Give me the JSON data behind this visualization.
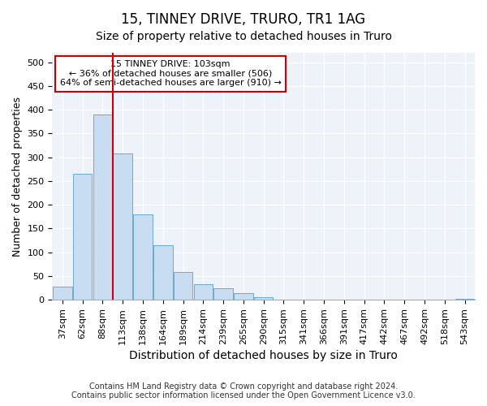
{
  "title": "15, TINNEY DRIVE, TRURO, TR1 1AG",
  "subtitle": "Size of property relative to detached houses in Truro",
  "xlabel": "Distribution of detached houses by size in Truro",
  "ylabel": "Number of detached properties",
  "categories": [
    "37sqm",
    "62sqm",
    "88sqm",
    "113sqm",
    "138sqm",
    "164sqm",
    "189sqm",
    "214sqm",
    "239sqm",
    "265sqm",
    "290sqm",
    "315sqm",
    "341sqm",
    "366sqm",
    "391sqm",
    "417sqm",
    "442sqm",
    "467sqm",
    "492sqm",
    "518sqm",
    "543sqm"
  ],
  "values": [
    28,
    265,
    390,
    308,
    179,
    115,
    58,
    32,
    25,
    14,
    6,
    1,
    0,
    0,
    0,
    0,
    0,
    0,
    0,
    0,
    2
  ],
  "bar_color": "#c9ddf2",
  "bar_edge_color": "#6aaad4",
  "vline_x": 2.5,
  "vline_color": "#cc0000",
  "ylim": [
    0,
    520
  ],
  "yticks": [
    0,
    50,
    100,
    150,
    200,
    250,
    300,
    350,
    400,
    450,
    500
  ],
  "annotation_text": "15 TINNEY DRIVE: 103sqm\n← 36% of detached houses are smaller (506)\n64% of semi-detached houses are larger (910) →",
  "annotation_box_facecolor": "#ffffff",
  "annotation_box_edgecolor": "#cc0000",
  "footer_line1": "Contains HM Land Registry data © Crown copyright and database right 2024.",
  "footer_line2": "Contains public sector information licensed under the Open Government Licence v3.0.",
  "plot_bg_color": "#eef2f9",
  "fig_bg_color": "#ffffff",
  "title_fontsize": 12,
  "subtitle_fontsize": 10,
  "xlabel_fontsize": 10,
  "ylabel_fontsize": 9,
  "tick_fontsize": 8,
  "annotation_fontsize": 8,
  "footer_fontsize": 7
}
